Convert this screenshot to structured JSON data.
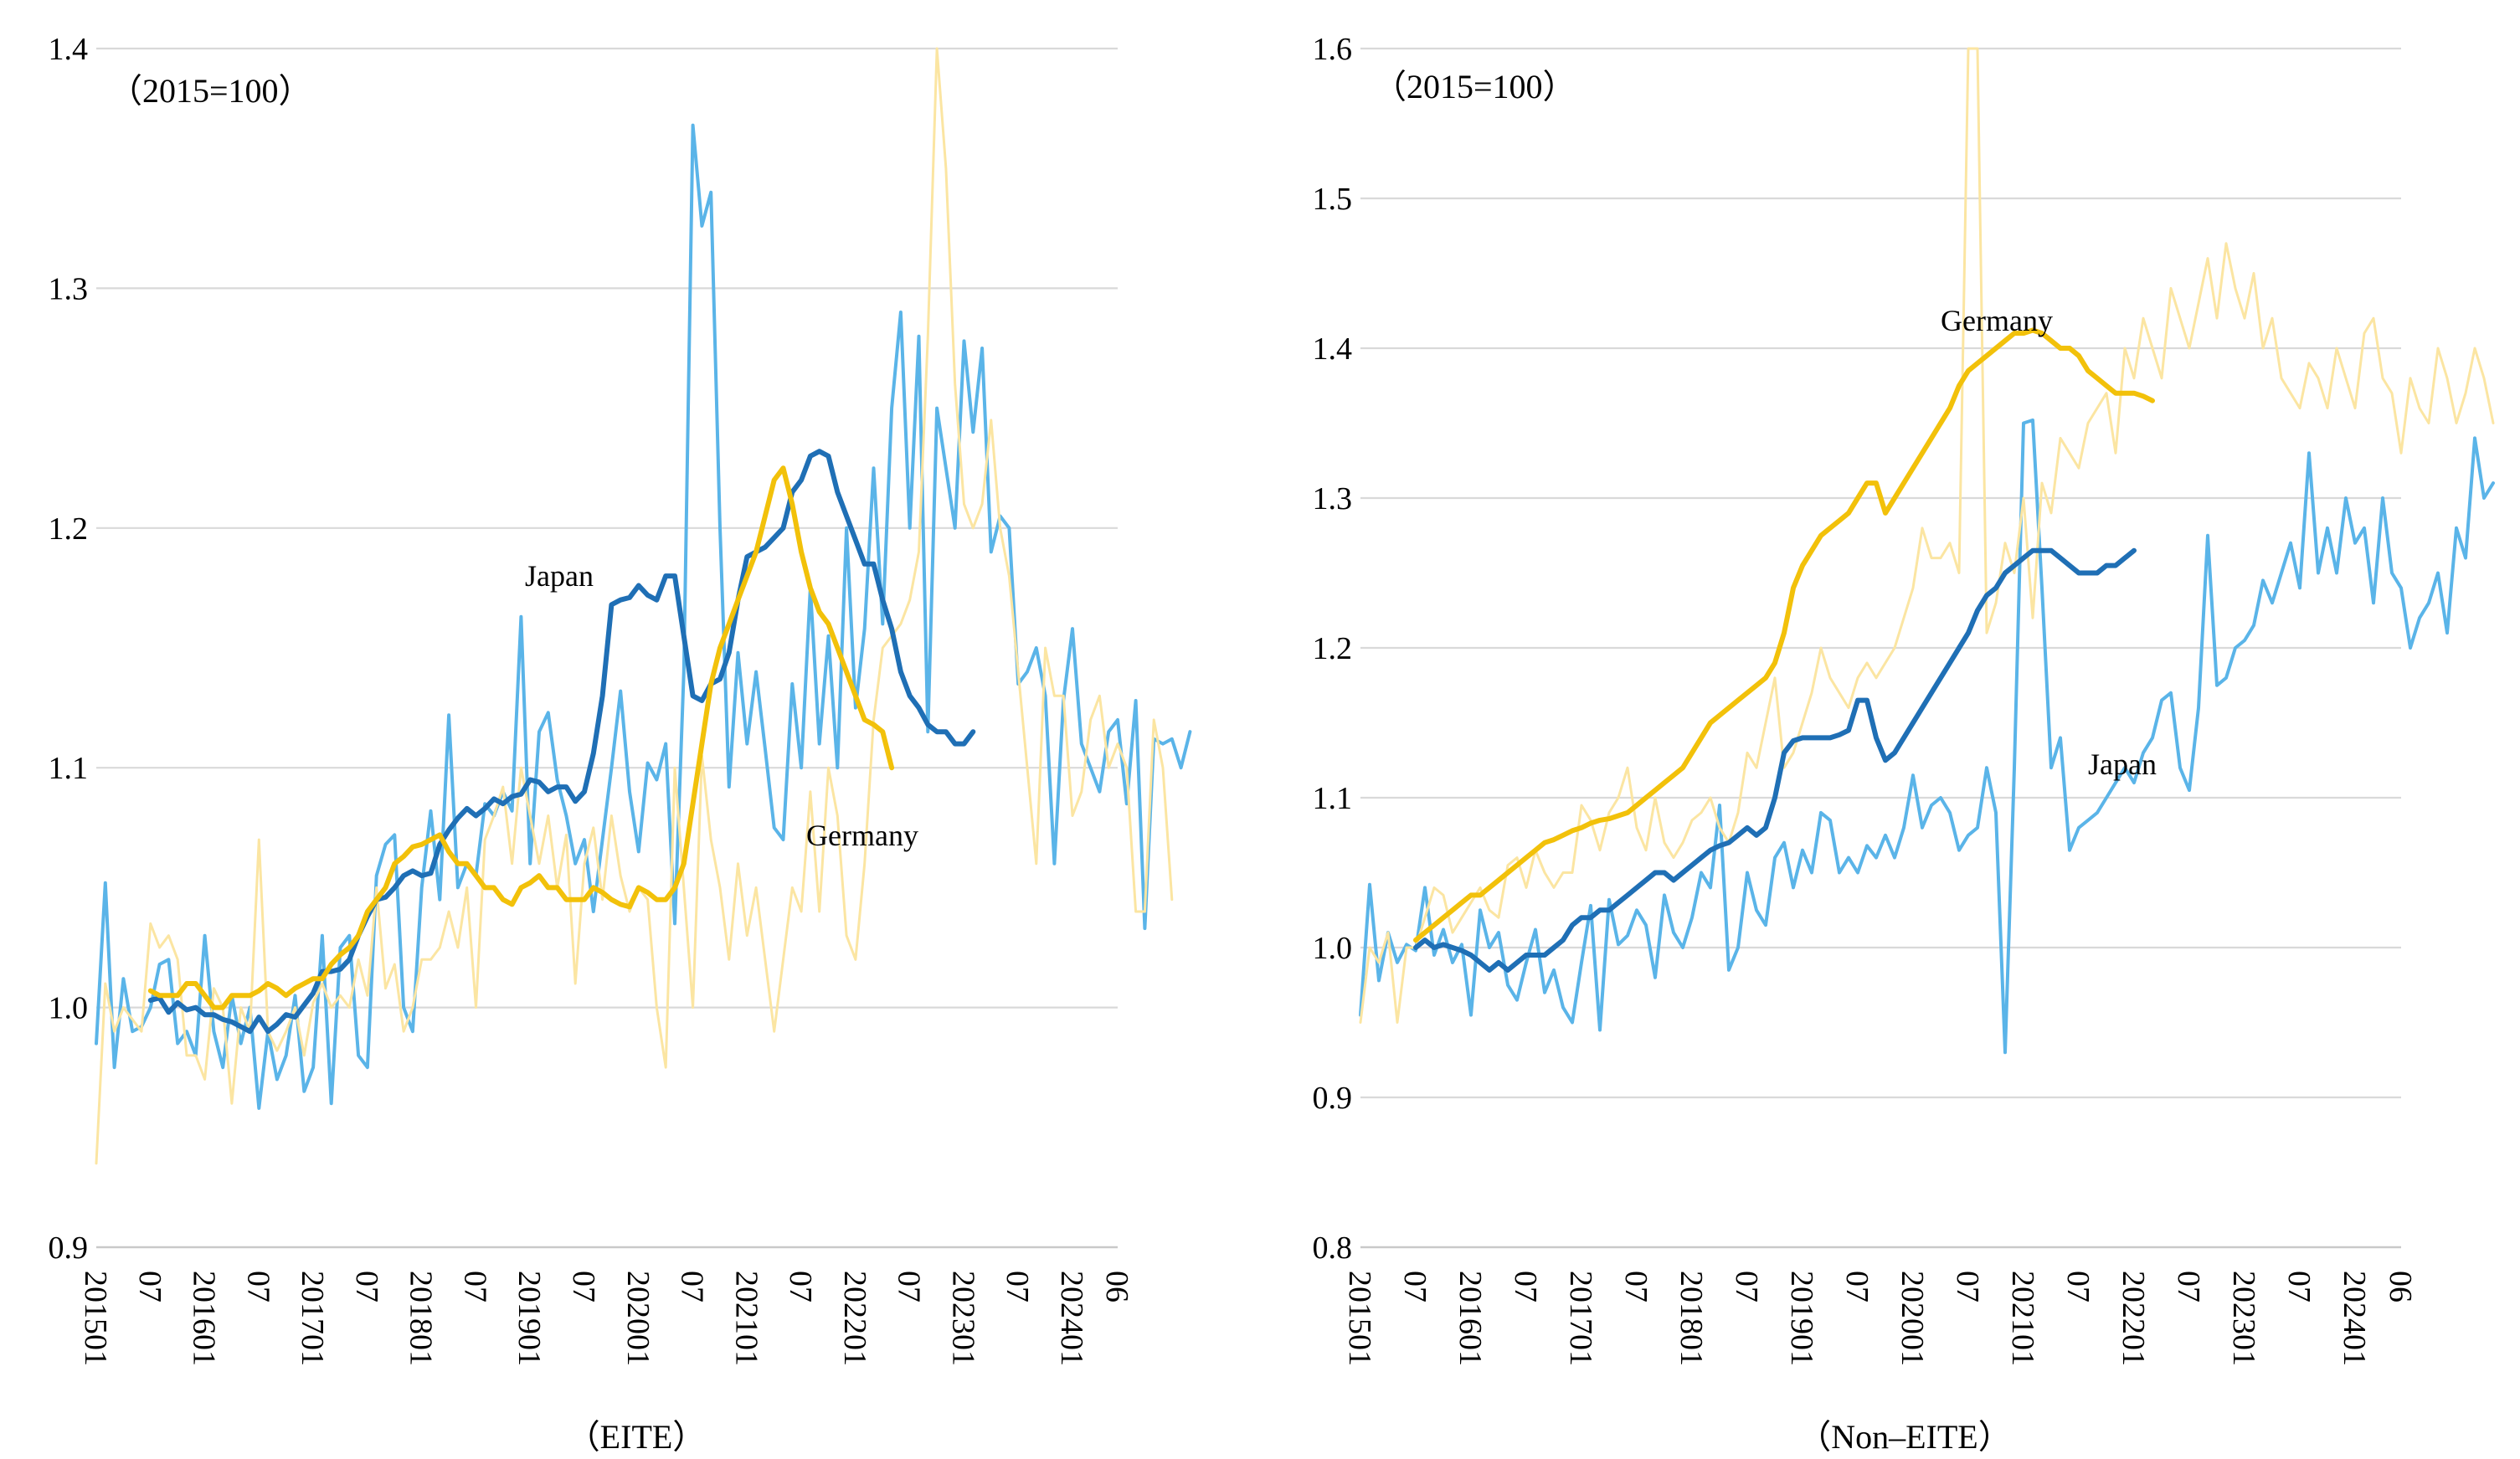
{
  "chart_data": [
    {
      "type": "line",
      "panel_caption": "（EITE）",
      "note": "（2015=100）",
      "ylim": [
        0.9,
        1.4
      ],
      "yticks": [
        "0.9",
        "1.0",
        "1.1",
        "1.2",
        "1.3",
        "1.4"
      ],
      "xticks": [
        "201501",
        "07",
        "201601",
        "07",
        "201701",
        "07",
        "201801",
        "07",
        "201901",
        "07",
        "202001",
        "07",
        "202101",
        "07",
        "202201",
        "07",
        "202301",
        "07",
        "202401",
        "06"
      ],
      "x_start": "2015-01",
      "x_end": "2024-06",
      "series": [
        {
          "name": "Japan",
          "color": "#5ab4e8",
          "values": [
            0.985,
            1.052,
            0.975,
            1.012,
            0.99,
            0.992,
            1.0,
            1.018,
            1.02,
            0.985,
            0.99,
            0.98,
            1.03,
            0.99,
            0.975,
            1.005,
            0.985,
            1.0,
            0.958,
            0.99,
            0.97,
            0.98,
            1.005,
            0.965,
            0.975,
            1.03,
            0.96,
            1.025,
            1.03,
            0.98,
            0.975,
            1.055,
            1.068,
            1.072,
            1.0,
            0.99,
            1.05,
            1.082,
            1.045,
            1.122,
            1.05,
            1.06,
            1.055,
            1.085,
            1.08,
            1.09,
            1.082,
            1.163,
            1.06,
            1.115,
            1.123,
            1.095,
            1.08,
            1.06,
            1.07,
            1.04,
            1.07,
            1.1,
            1.132,
            1.09,
            1.065,
            1.102,
            1.095,
            1.11,
            1.035,
            1.14,
            1.368,
            1.326,
            1.34,
            1.2,
            1.092,
            1.148,
            1.11,
            1.14,
            1.108,
            1.075,
            1.07,
            1.135,
            1.1,
            1.175,
            1.11,
            1.155,
            1.1,
            1.2,
            1.125,
            1.158,
            1.225,
            1.16,
            1.25,
            1.29,
            1.2,
            1.28,
            1.115,
            1.25,
            1.225,
            1.2,
            1.278,
            1.24,
            1.275,
            1.19,
            1.205,
            1.2,
            1.135,
            1.14,
            1.15,
            1.13,
            1.06,
            1.128,
            1.158,
            1.11,
            1.1,
            1.09,
            1.115,
            1.12,
            1.085,
            1.128,
            1.033,
            1.112,
            1.11,
            1.112,
            1.1,
            1.115
          ]
        },
        {
          "name": "Germany",
          "color": "#fbe5a2",
          "values": [
            0.935,
            1.01,
            0.99,
            1.0,
            0.995,
            0.99,
            1.035,
            1.025,
            1.03,
            1.02,
            0.98,
            0.98,
            0.97,
            1.008,
            1.0,
            0.96,
            1.0,
            0.99,
            1.07,
            0.99,
            0.982,
            0.99,
            1.0,
            0.98,
            1.002,
            1.01,
            1.0,
            1.005,
            1.0,
            1.02,
            1.005,
            1.05,
            1.008,
            1.018,
            0.99,
            1.0,
            1.02,
            1.02,
            1.025,
            1.04,
            1.025,
            1.05,
            1.0,
            1.07,
            1.08,
            1.092,
            1.06,
            1.1,
            1.08,
            1.06,
            1.08,
            1.05,
            1.072,
            1.01,
            1.06,
            1.075,
            1.045,
            1.08,
            1.055,
            1.04,
            1.05,
            1.045,
            1.0,
            0.975,
            1.1,
            1.05,
            1.0,
            1.105,
            1.07,
            1.05,
            1.02,
            1.06,
            1.03,
            1.05,
            1.02,
            0.99,
            1.02,
            1.05,
            1.04,
            1.09,
            1.04,
            1.1,
            1.08,
            1.03,
            1.02,
            1.06,
            1.12,
            1.15,
            1.155,
            1.16,
            1.17,
            1.19,
            1.28,
            1.4,
            1.35,
            1.26,
            1.21,
            1.2,
            1.21,
            1.245,
            1.2,
            1.18,
            1.14,
            1.1,
            1.06,
            1.15,
            1.13,
            1.13,
            1.08,
            1.09,
            1.12,
            1.13,
            1.1,
            1.11,
            1.1,
            1.04,
            1.04,
            1.12,
            1.1,
            1.045
          ]
        },
        {
          "name": "Japan",
          "color": "#1f6fb5",
          "values": [
            null,
            null,
            null,
            null,
            null,
            null,
            1.003,
            1.004,
            0.998,
            1.002,
            0.999,
            1.0,
            0.997,
            0.997,
            0.995,
            0.994,
            0.992,
            0.99,
            0.996,
            0.99,
            0.993,
            0.997,
            0.996,
            1.001,
            1.006,
            1.015,
            1.015,
            1.016,
            1.02,
            1.03,
            1.038,
            1.045,
            1.046,
            1.05,
            1.055,
            1.057,
            1.055,
            1.056,
            1.068,
            1.074,
            1.079,
            1.083,
            1.08,
            1.083,
            1.087,
            1.085,
            1.088,
            1.089,
            1.095,
            1.094,
            1.09,
            1.092,
            1.092,
            1.086,
            1.09,
            1.106,
            1.13,
            1.168,
            1.17,
            1.171,
            1.176,
            1.172,
            1.17,
            1.18,
            1.18,
            1.155,
            1.13,
            1.128,
            1.135,
            1.137,
            1.148,
            1.17,
            1.188,
            1.19,
            1.192,
            1.196,
            1.2,
            1.215,
            1.22,
            1.23,
            1.232,
            1.23,
            1.215,
            1.205,
            1.195,
            1.185,
            1.185,
            1.17,
            1.158,
            1.14,
            1.13,
            1.125,
            1.118,
            1.115,
            1.115,
            1.11,
            1.11,
            1.115
          ]
        },
        {
          "name": "Germany",
          "color": "#f2c10a",
          "values": [
            null,
            null,
            null,
            null,
            null,
            null,
            1.007,
            1.005,
            1.005,
            1.005,
            1.01,
            1.01,
            1.005,
            1.0,
            1.0,
            1.005,
            1.005,
            1.005,
            1.007,
            1.01,
            1.008,
            1.005,
            1.008,
            1.01,
            1.012,
            1.012,
            1.018,
            1.022,
            1.025,
            1.03,
            1.04,
            1.045,
            1.05,
            1.06,
            1.063,
            1.067,
            1.068,
            1.07,
            1.072,
            1.065,
            1.06,
            1.06,
            1.055,
            1.05,
            1.05,
            1.045,
            1.043,
            1.05,
            1.052,
            1.055,
            1.05,
            1.05,
            1.045,
            1.045,
            1.045,
            1.05,
            1.048,
            1.045,
            1.043,
            1.042,
            1.05,
            1.048,
            1.045,
            1.045,
            1.05,
            1.06,
            1.085,
            1.11,
            1.135,
            1.15,
            1.16,
            1.17,
            1.18,
            1.19,
            1.205,
            1.22,
            1.225,
            1.21,
            1.19,
            1.175,
            1.165,
            1.16,
            1.15,
            1.14,
            1.13,
            1.12,
            1.118,
            1.115,
            1.1
          ]
        }
      ],
      "annotations": [
        {
          "text": "Japan"
        },
        {
          "text": "Germany"
        }
      ]
    },
    {
      "type": "line",
      "panel_caption": "（Non–EITE）",
      "note": "（2015=100）",
      "ylim": [
        0.8,
        1.6
      ],
      "yticks": [
        "0.8",
        "0.9",
        "1.0",
        "1.1",
        "1.2",
        "1.3",
        "1.4",
        "1.5",
        "1.6"
      ],
      "xticks": [
        "201501",
        "07",
        "201601",
        "07",
        "201701",
        "07",
        "201801",
        "07",
        "201901",
        "07",
        "202001",
        "07",
        "202101",
        "07",
        "202201",
        "07",
        "202301",
        "07",
        "202401",
        "06"
      ],
      "x_start": "2015-01",
      "x_end": "2024-06",
      "series": [
        {
          "name": "Japan",
          "color": "#5ab4e8",
          "values": [
            0.955,
            1.042,
            0.978,
            1.01,
            0.99,
            1.002,
            0.998,
            1.04,
            0.995,
            1.012,
            0.99,
            1.002,
            0.955,
            1.025,
            1.0,
            1.01,
            0.975,
            0.965,
            0.99,
            1.012,
            0.97,
            0.985,
            0.96,
            0.95,
            0.99,
            1.028,
            0.945,
            1.032,
            1.002,
            1.008,
            1.025,
            1.015,
            0.98,
            1.035,
            1.01,
            1.0,
            1.02,
            1.05,
            1.04,
            1.095,
            0.985,
            1.0,
            1.05,
            1.025,
            1.015,
            1.06,
            1.07,
            1.04,
            1.065,
            1.05,
            1.09,
            1.085,
            1.05,
            1.06,
            1.05,
            1.068,
            1.06,
            1.075,
            1.06,
            1.08,
            1.115,
            1.08,
            1.095,
            1.1,
            1.09,
            1.065,
            1.075,
            1.08,
            1.12,
            1.09,
            0.93,
            1.12,
            1.35,
            1.352,
            1.24,
            1.12,
            1.14,
            1.065,
            1.08,
            1.085,
            1.09,
            1.1,
            1.11,
            1.12,
            1.11,
            1.13,
            1.14,
            1.165,
            1.17,
            1.12,
            1.105,
            1.16,
            1.275,
            1.175,
            1.18,
            1.2,
            1.205,
            1.215,
            1.245,
            1.23,
            1.25,
            1.27,
            1.24,
            1.33,
            1.25,
            1.28,
            1.25,
            1.3,
            1.27,
            1.28,
            1.23,
            1.3,
            1.25,
            1.24,
            1.2,
            1.22,
            1.23,
            1.25,
            1.21,
            1.28,
            1.26,
            1.34,
            1.3,
            1.31
          ]
        },
        {
          "name": "Germany",
          "color": "#fbe5a2",
          "values": [
            0.95,
            1.0,
            0.99,
            1.01,
            0.95,
            1.0,
            1.0,
            1.02,
            1.04,
            1.035,
            1.01,
            1.02,
            1.03,
            1.04,
            1.025,
            1.02,
            1.055,
            1.06,
            1.04,
            1.065,
            1.05,
            1.04,
            1.05,
            1.05,
            1.095,
            1.085,
            1.065,
            1.09,
            1.1,
            1.12,
            1.08,
            1.065,
            1.1,
            1.07,
            1.06,
            1.07,
            1.085,
            1.09,
            1.1,
            1.08,
            1.07,
            1.09,
            1.13,
            1.12,
            1.15,
            1.18,
            1.12,
            1.13,
            1.15,
            1.17,
            1.2,
            1.18,
            1.17,
            1.16,
            1.18,
            1.19,
            1.18,
            1.19,
            1.2,
            1.22,
            1.24,
            1.28,
            1.26,
            1.26,
            1.27,
            1.25,
            1.6,
            1.6,
            1.21,
            1.23,
            1.27,
            1.25,
            1.3,
            1.22,
            1.31,
            1.29,
            1.34,
            1.33,
            1.32,
            1.35,
            1.36,
            1.37,
            1.33,
            1.4,
            1.38,
            1.42,
            1.4,
            1.38,
            1.44,
            1.42,
            1.4,
            1.43,
            1.46,
            1.42,
            1.47,
            1.44,
            1.42,
            1.45,
            1.4,
            1.42,
            1.38,
            1.37,
            1.36,
            1.39,
            1.38,
            1.36,
            1.4,
            1.38,
            1.36,
            1.41,
            1.42,
            1.38,
            1.37,
            1.33,
            1.38,
            1.36,
            1.35,
            1.4,
            1.38,
            1.35,
            1.37,
            1.4,
            1.38,
            1.35
          ]
        },
        {
          "name": "Japan",
          "color": "#1f6fb5",
          "values": [
            null,
            null,
            null,
            null,
            null,
            null,
            1.0,
            1.005,
            1.0,
            1.002,
            1.0,
            0.998,
            0.995,
            0.99,
            0.985,
            0.99,
            0.985,
            0.99,
            0.995,
            0.995,
            0.995,
            1.0,
            1.005,
            1.015,
            1.02,
            1.02,
            1.025,
            1.025,
            1.03,
            1.035,
            1.04,
            1.045,
            1.05,
            1.05,
            1.045,
            1.05,
            1.055,
            1.06,
            1.065,
            1.068,
            1.07,
            1.075,
            1.08,
            1.075,
            1.08,
            1.1,
            1.13,
            1.138,
            1.14,
            1.14,
            1.14,
            1.14,
            1.142,
            1.145,
            1.165,
            1.165,
            1.14,
            1.125,
            1.13,
            1.14,
            1.15,
            1.16,
            1.17,
            1.18,
            1.19,
            1.2,
            1.21,
            1.225,
            1.235,
            1.24,
            1.25,
            1.255,
            1.26,
            1.265,
            1.265,
            1.265,
            1.26,
            1.255,
            1.25,
            1.25,
            1.25,
            1.255,
            1.255,
            1.26,
            1.265
          ]
        },
        {
          "name": "Germany",
          "color": "#f2c10a",
          "values": [
            null,
            null,
            null,
            null,
            null,
            null,
            1.005,
            1.01,
            1.015,
            1.02,
            1.025,
            1.03,
            1.035,
            1.035,
            1.04,
            1.045,
            1.05,
            1.055,
            1.06,
            1.065,
            1.07,
            1.072,
            1.075,
            1.078,
            1.08,
            1.083,
            1.085,
            1.086,
            1.088,
            1.09,
            1.095,
            1.1,
            1.105,
            1.11,
            1.115,
            1.12,
            1.13,
            1.14,
            1.15,
            1.155,
            1.16,
            1.165,
            1.17,
            1.175,
            1.18,
            1.19,
            1.21,
            1.24,
            1.255,
            1.265,
            1.275,
            1.28,
            1.285,
            1.29,
            1.3,
            1.31,
            1.31,
            1.29,
            1.3,
            1.31,
            1.32,
            1.33,
            1.34,
            1.35,
            1.36,
            1.375,
            1.385,
            1.39,
            1.395,
            1.4,
            1.405,
            1.41,
            1.41,
            1.412,
            1.41,
            1.405,
            1.4,
            1.4,
            1.395,
            1.385,
            1.38,
            1.375,
            1.37,
            1.37,
            1.37,
            1.368,
            1.365
          ]
        }
      ],
      "annotations": [
        {
          "text": "Germany"
        },
        {
          "text": "Japan"
        }
      ]
    }
  ]
}
